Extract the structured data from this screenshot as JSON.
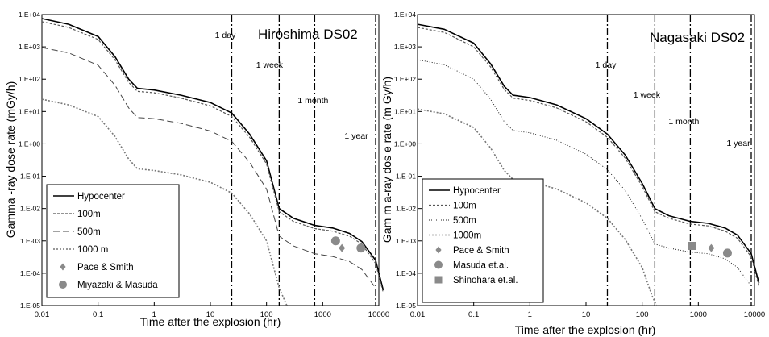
{
  "chart_data": [
    {
      "type": "line",
      "title": "Hiroshima DS02",
      "xlabel": "Time after the explosion (hr)",
      "ylabel": "Gamma -ray dose rate (mGy/h)",
      "xscale": "log",
      "yscale": "log",
      "xlim": [
        0.01,
        10000
      ],
      "ylim": [
        1e-05,
        10000
      ],
      "x_ticks": [
        "0.01",
        "0.1",
        "1",
        "10",
        "100",
        "1000",
        "10000"
      ],
      "y_ticks": [
        "1.E-05",
        "1.E-04",
        "1.E-03",
        "1.E-02",
        "1.E-01",
        "1.E+00",
        "1.E+01",
        "1.E+02",
        "1.E+03",
        "1.E+04"
      ],
      "grid": false,
      "legend_position": "bottom-left",
      "markers": [
        {
          "label": "1 day",
          "x": 24
        },
        {
          "label": "1 week",
          "x": 168
        },
        {
          "label": "1 month",
          "x": 720
        },
        {
          "label": "1 year",
          "x": 8760
        }
      ],
      "series": [
        {
          "name": "Hypocenter",
          "style": "solid",
          "points": [
            [
              0.01,
              7500
            ],
            [
              0.03,
              5000
            ],
            [
              0.1,
              2100
            ],
            [
              0.2,
              500
            ],
            [
              0.35,
              100
            ],
            [
              0.5,
              52
            ],
            [
              1,
              46
            ],
            [
              3,
              32
            ],
            [
              10,
              19
            ],
            [
              24,
              9
            ],
            [
              50,
              2
            ],
            [
              100,
              0.3
            ],
            [
              168,
              0.01
            ],
            [
              300,
              0.005
            ],
            [
              720,
              0.003
            ],
            [
              1500,
              0.0025
            ],
            [
              3000,
              0.0017
            ],
            [
              5000,
              0.00095
            ],
            [
              8760,
              0.00025
            ],
            [
              12000,
              3e-05
            ]
          ]
        },
        {
          "name": "100m",
          "style": "short-dash",
          "points": [
            [
              0.01,
              6000
            ],
            [
              0.03,
              4000
            ],
            [
              0.1,
              1700
            ],
            [
              0.2,
              400
            ],
            [
              0.35,
              80
            ],
            [
              0.5,
              42
            ],
            [
              1,
              38
            ],
            [
              3,
              26
            ],
            [
              10,
              15
            ],
            [
              24,
              7
            ],
            [
              50,
              1.6
            ],
            [
              100,
              0.24
            ],
            [
              168,
              0.008
            ],
            [
              300,
              0.004
            ],
            [
              720,
              0.0024
            ],
            [
              1500,
              0.002
            ],
            [
              3000,
              0.0014
            ],
            [
              5000,
              0.0008
            ],
            [
              8760,
              0.0002
            ],
            [
              12000,
              2.5e-05
            ]
          ]
        },
        {
          "name": "500m",
          "style": "long-dash",
          "points": [
            [
              0.01,
              950
            ],
            [
              0.03,
              650
            ],
            [
              0.1,
              270
            ],
            [
              0.2,
              65
            ],
            [
              0.35,
              13
            ],
            [
              0.5,
              6.5
            ],
            [
              1,
              6
            ],
            [
              3,
              4.3
            ],
            [
              10,
              2.5
            ],
            [
              24,
              1.2
            ],
            [
              50,
              0.27
            ],
            [
              100,
              0.04
            ],
            [
              168,
              0.0014
            ],
            [
              300,
              0.0007
            ],
            [
              720,
              0.0004
            ],
            [
              1500,
              0.00033
            ],
            [
              3000,
              0.00023
            ],
            [
              5000,
              0.00013
            ],
            [
              8760,
              3.5e-05
            ]
          ]
        },
        {
          "name": "1000 m",
          "style": "dot-dash",
          "points": [
            [
              0.01,
              24
            ],
            [
              0.03,
              16
            ],
            [
              0.1,
              7
            ],
            [
              0.2,
              1.7
            ],
            [
              0.35,
              0.34
            ],
            [
              0.5,
              0.17
            ],
            [
              1,
              0.15
            ],
            [
              3,
              0.11
            ],
            [
              10,
              0.065
            ],
            [
              24,
              0.03
            ],
            [
              50,
              0.0068
            ],
            [
              100,
              0.001
            ],
            [
              168,
              3.5e-05
            ],
            [
              230,
              1e-05
            ]
          ]
        }
      ],
      "scatter": [
        {
          "name": "Pace & Smith",
          "marker": "diamond",
          "points": [
            [
              2200,
              0.0006
            ]
          ]
        },
        {
          "name": "Miyazaki & Masuda",
          "marker": "circle",
          "points": [
            [
              1700,
              0.001
            ],
            [
              4800,
              0.0006
            ]
          ]
        }
      ]
    },
    {
      "type": "line",
      "title": "Nagasaki DS02",
      "xlabel": "Time after the explosion (hr)",
      "ylabel": "Gam m a-ray dos e rate (m Gy/h)",
      "xscale": "log",
      "yscale": "log",
      "xlim": [
        0.01,
        10000
      ],
      "ylim": [
        1e-05,
        10000
      ],
      "x_ticks": [
        "0.01",
        "0.1",
        "1",
        "10",
        "100",
        "1000",
        "10000"
      ],
      "y_ticks": [
        "1.E-05",
        "1.E-04",
        "1.E-03",
        "1.E-02",
        "1.E-01",
        "1.E+00",
        "1.E+01",
        "1.E+02",
        "1.E+03",
        "1.E+04"
      ],
      "grid": false,
      "legend_position": "bottom-left",
      "markers": [
        {
          "label": "1 day",
          "x": 24
        },
        {
          "label": "1 week",
          "x": 168
        },
        {
          "label": "1 month",
          "x": 720
        },
        {
          "label": "1 year",
          "x": 8760
        }
      ],
      "series": [
        {
          "name": "Hypocenter",
          "style": "solid",
          "points": [
            [
              0.01,
              5000
            ],
            [
              0.03,
              3500
            ],
            [
              0.1,
              1300
            ],
            [
              0.2,
              300
            ],
            [
              0.35,
              60
            ],
            [
              0.5,
              32
            ],
            [
              1,
              27
            ],
            [
              3,
              16
            ],
            [
              10,
              6
            ],
            [
              24,
              2
            ],
            [
              50,
              0.45
            ],
            [
              100,
              0.06
            ],
            [
              168,
              0.01
            ],
            [
              300,
              0.006
            ],
            [
              720,
              0.004
            ],
            [
              1500,
              0.0035
            ],
            [
              3000,
              0.0025
            ],
            [
              5000,
              0.0015
            ],
            [
              8760,
              0.0004
            ],
            [
              12000,
              5e-05
            ]
          ]
        },
        {
          "name": "100m",
          "style": "short-dash",
          "points": [
            [
              0.01,
              4000
            ],
            [
              0.03,
              2800
            ],
            [
              0.1,
              1000
            ],
            [
              0.2,
              240
            ],
            [
              0.35,
              48
            ],
            [
              0.5,
              26
            ],
            [
              1,
              22
            ],
            [
              3,
              13
            ],
            [
              10,
              4.8
            ],
            [
              24,
              1.6
            ],
            [
              50,
              0.36
            ],
            [
              100,
              0.048
            ],
            [
              168,
              0.008
            ],
            [
              300,
              0.005
            ],
            [
              720,
              0.0033
            ],
            [
              1500,
              0.0029
            ],
            [
              3000,
              0.002
            ],
            [
              5000,
              0.0012
            ],
            [
              8760,
              0.00032
            ],
            [
              12000,
              4e-05
            ]
          ]
        },
        {
          "name": "500m",
          "style": "dotted",
          "points": [
            [
              0.01,
              400
            ],
            [
              0.03,
              280
            ],
            [
              0.1,
              100
            ],
            [
              0.2,
              24
            ],
            [
              0.35,
              4.8
            ],
            [
              0.5,
              2.6
            ],
            [
              1,
              2.2
            ],
            [
              3,
              1.3
            ],
            [
              10,
              0.48
            ],
            [
              24,
              0.16
            ],
            [
              50,
              0.036
            ],
            [
              100,
              0.0048
            ],
            [
              168,
              0.0008
            ],
            [
              300,
              0.0006
            ],
            [
              720,
              0.00045
            ],
            [
              1500,
              0.0004
            ],
            [
              3000,
              0.00028
            ],
            [
              5000,
              0.00015
            ],
            [
              8760,
              4e-05
            ]
          ]
        },
        {
          "name": "1000m",
          "style": "dot-dash",
          "points": [
            [
              0.01,
              12
            ],
            [
              0.03,
              8.5
            ],
            [
              0.1,
              3.2
            ],
            [
              0.2,
              0.75
            ],
            [
              0.35,
              0.15
            ],
            [
              0.5,
              0.08
            ],
            [
              1,
              0.07
            ],
            [
              3,
              0.04
            ],
            [
              10,
              0.015
            ],
            [
              24,
              0.005
            ],
            [
              50,
              0.0011
            ],
            [
              100,
              0.00015
            ],
            [
              150,
              2e-05
            ],
            [
              180,
              1e-05
            ]
          ]
        }
      ],
      "scatter": [
        {
          "name": "Pace & Smith",
          "marker": "diamond",
          "points": [
            [
              1700,
              0.0006
            ]
          ]
        },
        {
          "name": "Masuda et.al.",
          "marker": "circle",
          "points": [
            [
              3300,
              0.00042
            ]
          ]
        },
        {
          "name": "Shinohara et.al.",
          "marker": "square",
          "points": [
            [
              780,
              0.0007
            ]
          ]
        }
      ]
    }
  ]
}
